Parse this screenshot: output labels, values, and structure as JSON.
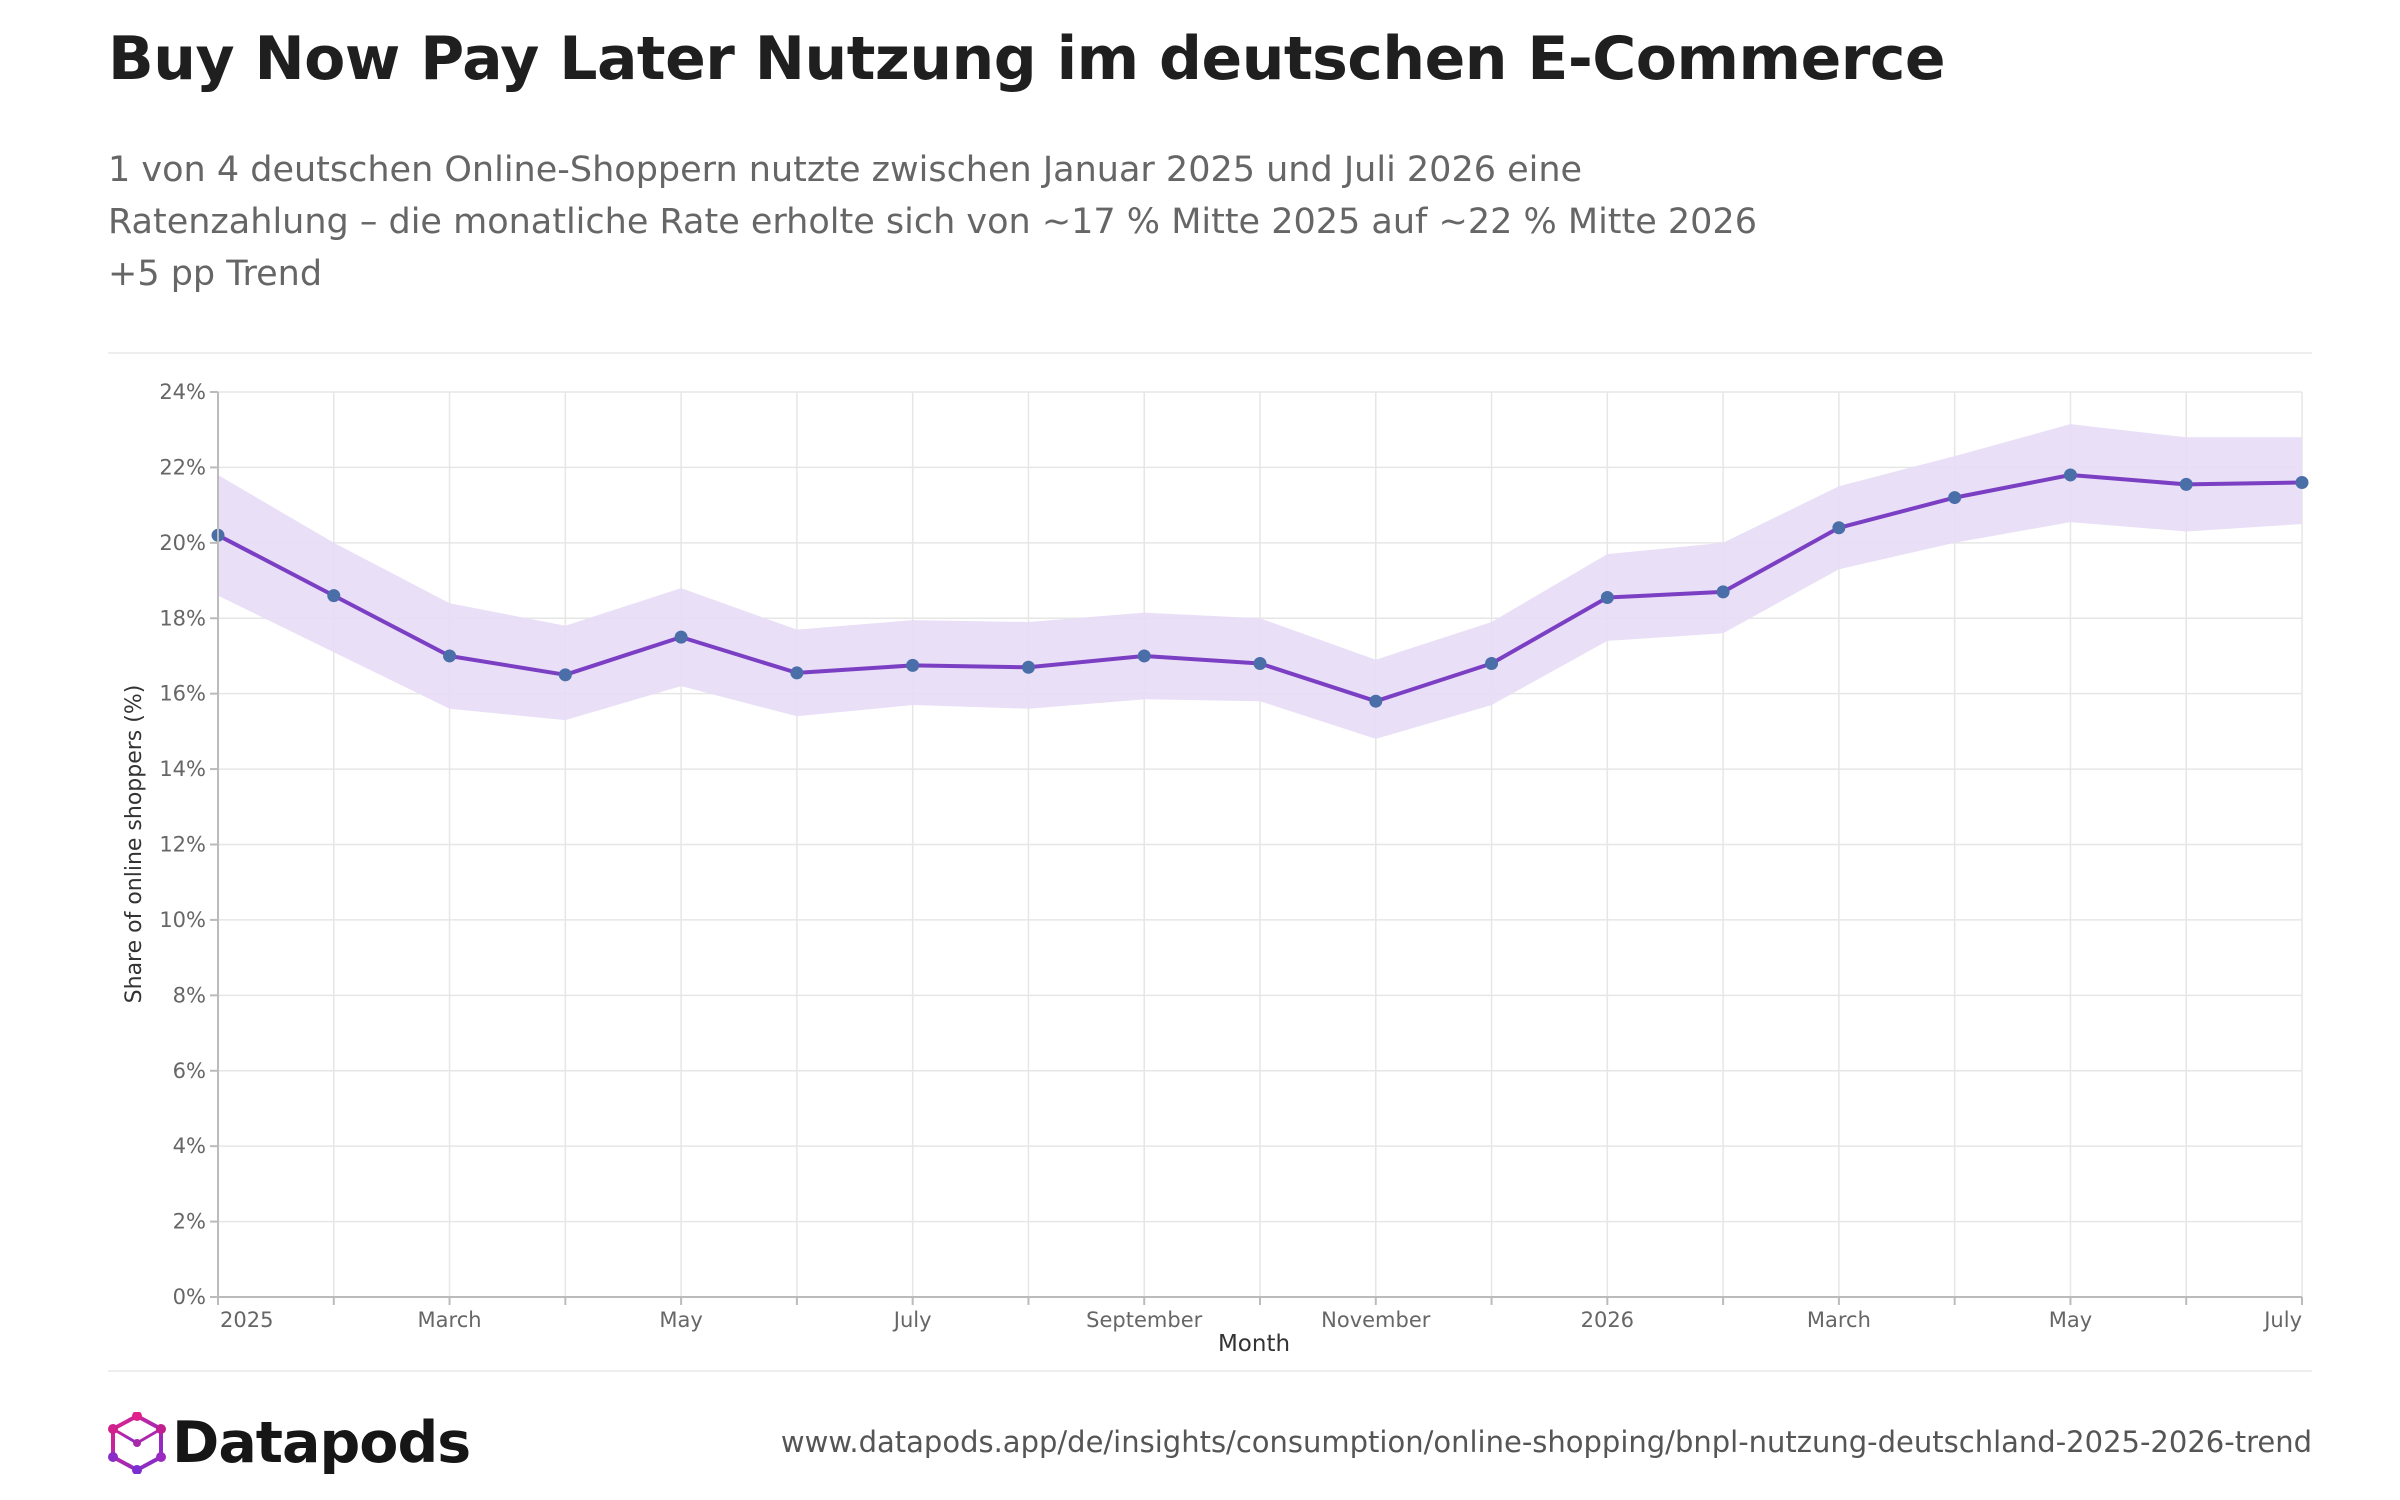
{
  "header": {
    "title": "Buy Now Pay Later Nutzung im deutschen E-Commerce",
    "subtitle_lines": [
      "1 von 4 deutschen Online-Shoppern nutzte zwischen Januar 2025 und Juli 2026 eine",
      "Ratenzahlung – die monatliche Rate erholte sich von ~17 % Mitte 2025 auf ~22 % Mitte 2026",
      "+5 pp Trend"
    ]
  },
  "footer": {
    "brand": "Datapods",
    "url": "www.datapods.app/de/insights/consumption/online-shopping/bnpl-nutzung-deutschland-2025-2026-trend"
  },
  "colors": {
    "line": "#7b3fc4",
    "marker": "#4a6ea8",
    "band": "#e7dcf6",
    "grid": "#e6e6e6",
    "axis": "#bbbbbb",
    "tick_text": "#666666"
  },
  "chart_data": {
    "type": "line",
    "xlabel": "Month",
    "ylabel": "Share of online shoppers (%)",
    "ylim": [
      0,
      24
    ],
    "yticks": [
      0,
      2,
      4,
      6,
      8,
      10,
      12,
      14,
      16,
      18,
      20,
      22,
      24
    ],
    "ytick_labels": [
      "0%",
      "2%",
      "4%",
      "6%",
      "8%",
      "10%",
      "12%",
      "14%",
      "16%",
      "18%",
      "20%",
      "22%",
      "24%"
    ],
    "grid": true,
    "x": [
      "2025-01",
      "2025-02",
      "2025-03",
      "2025-04",
      "2025-05",
      "2025-06",
      "2025-07",
      "2025-08",
      "2025-09",
      "2025-10",
      "2025-11",
      "2025-12",
      "2026-01",
      "2026-02",
      "2026-03",
      "2026-04",
      "2026-05",
      "2026-06",
      "2026-07"
    ],
    "x_tick_labels": [
      "2025",
      "",
      "March",
      "",
      "May",
      "",
      "July",
      "",
      "September",
      "",
      "November",
      "",
      "2026",
      "",
      "March",
      "",
      "May",
      "",
      "July"
    ],
    "series": [
      {
        "values": [
          20.2,
          18.6,
          17.0,
          16.5,
          17.5,
          16.55,
          16.75,
          16.7,
          17.0,
          16.8,
          15.8,
          16.8,
          18.55,
          18.7,
          20.4,
          21.2,
          21.8,
          21.55,
          21.6
        ],
        "lower": [
          18.6,
          17.1,
          15.6,
          15.3,
          16.2,
          15.4,
          15.7,
          15.6,
          15.85,
          15.8,
          14.8,
          15.7,
          17.4,
          17.6,
          19.3,
          20.0,
          20.55,
          20.3,
          20.5
        ],
        "upper": [
          21.8,
          20.0,
          18.4,
          17.8,
          18.8,
          17.7,
          17.95,
          17.9,
          18.15,
          18.0,
          16.9,
          17.9,
          19.7,
          20.0,
          21.5,
          22.3,
          23.15,
          22.8,
          22.8
        ]
      }
    ]
  }
}
